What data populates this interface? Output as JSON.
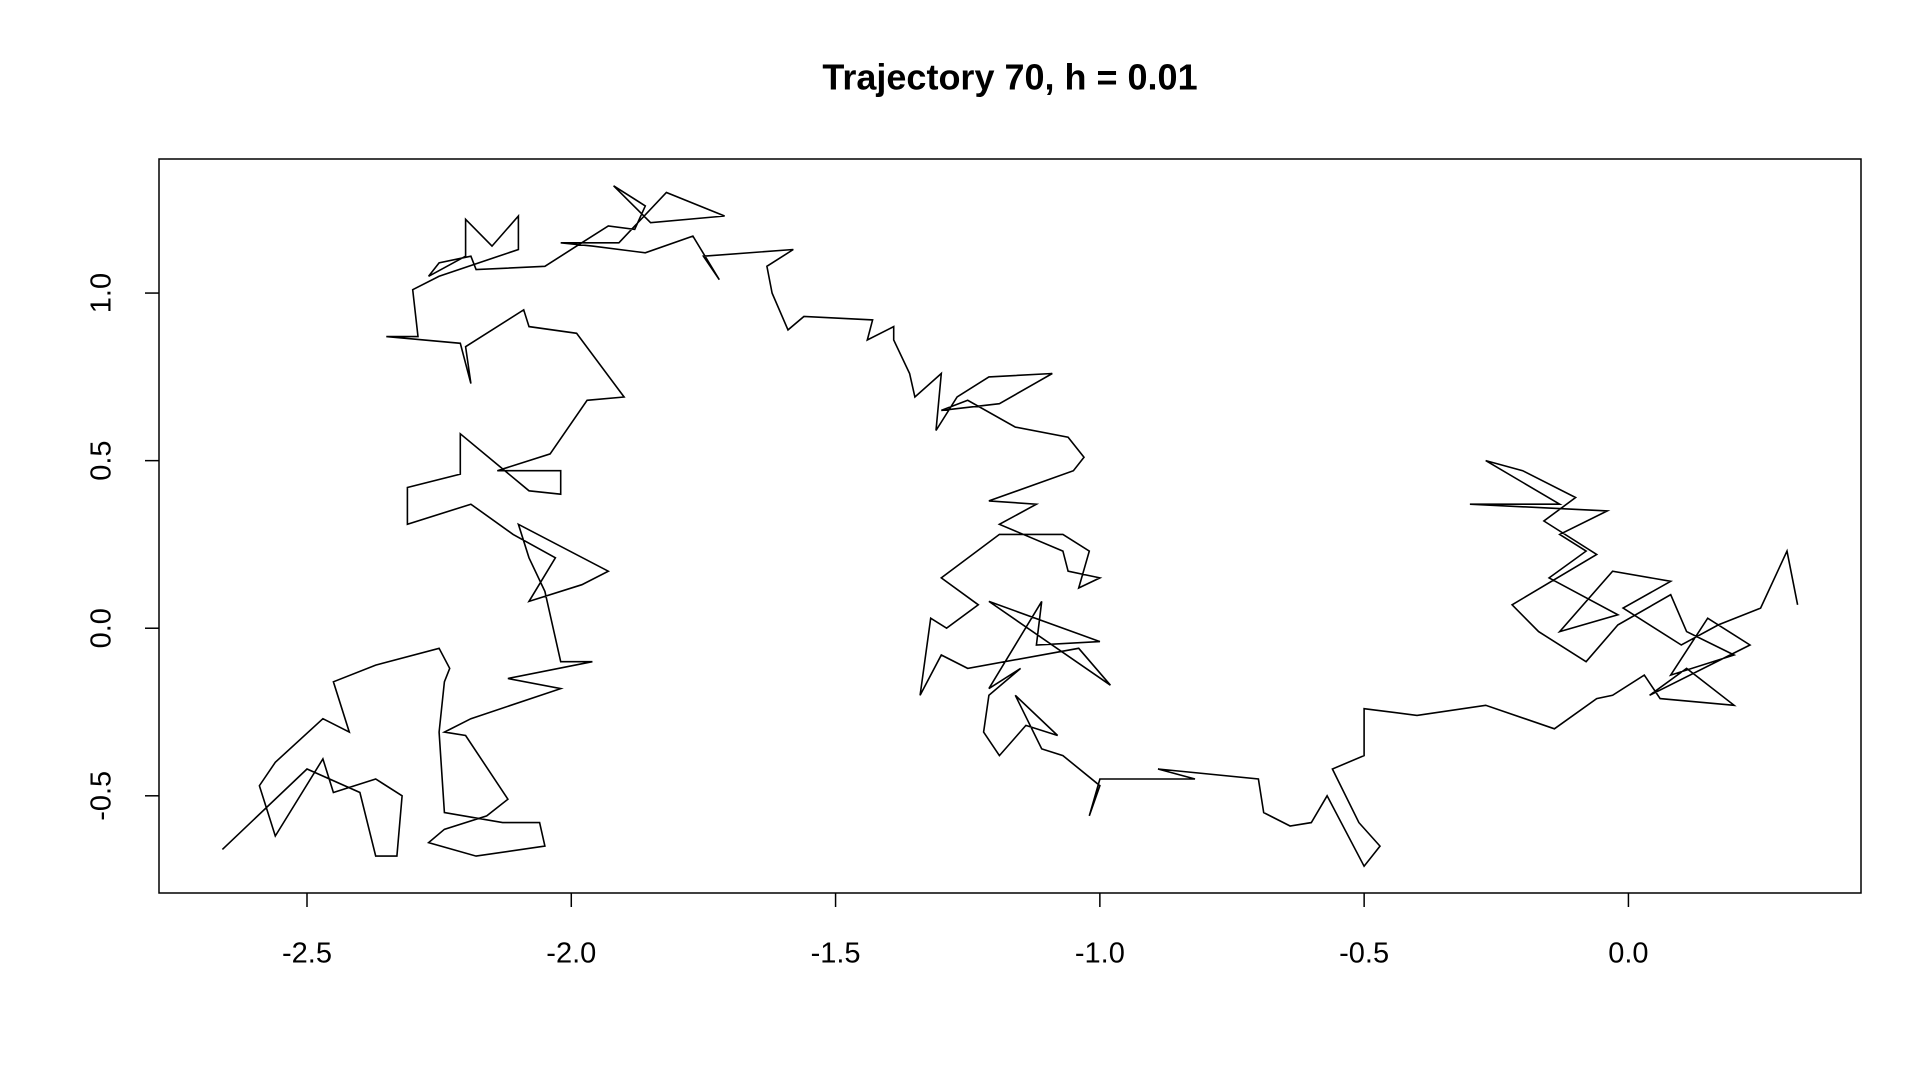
{
  "chart_data": {
    "type": "line",
    "title": "Trajectory 70, h = 0.01",
    "xlim": [
      -2.78,
      0.44
    ],
    "ylim": [
      -0.79,
      1.4
    ],
    "xticks": [
      -2.5,
      {
        "value": -2,
        "label": "-2.0"
      },
      -1.5,
      {
        "value": -1,
        "label": "-1.0"
      },
      -0.5,
      {
        "value": 0,
        "label": "0.0"
      }
    ],
    "yticks": [
      -0.5,
      {
        "value": 0,
        "label": "0.0"
      },
      0.5,
      {
        "value": 1,
        "label": "1.0"
      }
    ],
    "color": "#000000",
    "x": [
      0.32,
      0.3,
      0.25,
      0.17,
      0.1,
      -0.01,
      0.08,
      -0.03,
      -0.13,
      -0.02,
      -0.15,
      -0.08,
      -0.13,
      -0.04,
      -0.3,
      -0.13,
      -0.27,
      -0.2,
      -0.1,
      -0.16,
      -0.06,
      -0.22,
      -0.17,
      -0.08,
      -0.02,
      0.08,
      0.11,
      0.2,
      0.08,
      0.15,
      0.23,
      0.04,
      0.11,
      0.2,
      0.06,
      0.03,
      -0.03,
      -0.06,
      -0.14,
      -0.27,
      -0.4,
      -0.5,
      -0.5,
      -0.56,
      -0.51,
      -0.47,
      -0.5,
      -0.57,
      -0.6,
      -0.64,
      -0.69,
      -0.7,
      -0.89,
      -0.82,
      -1.0,
      -1.02,
      -1.0,
      -1.07,
      -1.11,
      -1.16,
      -1.08,
      -1.14,
      -1.19,
      -1.22,
      -1.21,
      -1.15,
      -1.21,
      -1.11,
      -1.12,
      -1.0,
      -1.21,
      -0.98,
      -1.04,
      -1.25,
      -1.3,
      -1.34,
      -1.32,
      -1.29,
      -1.23,
      -1.3,
      -1.19,
      -1.07,
      -1.02,
      -1.04,
      -1.0,
      -1.06,
      -1.07,
      -1.19,
      -1.12,
      -1.21,
      -1.05,
      -1.03,
      -1.06,
      -1.16,
      -1.25,
      -1.3,
      -1.19,
      -1.09,
      -1.21,
      -1.27,
      -1.31,
      -1.3,
      -1.35,
      -1.36,
      -1.39,
      -1.39,
      -1.44,
      -1.43,
      -1.56,
      -1.59,
      -1.62,
      -1.63,
      -1.58,
      -1.75,
      -1.72,
      -1.77,
      -1.86,
      -1.96,
      -2.02,
      -1.91,
      -1.82,
      -1.71,
      -1.85,
      -1.92,
      -1.86,
      -1.88,
      -1.93,
      -1.99,
      -2.05,
      -2.18,
      -2.19,
      -2.25,
      -2.27,
      -2.2,
      -2.2,
      -2.15,
      -2.1,
      -2.1,
      -2.25,
      -2.3,
      -2.29,
      -2.35,
      -2.21,
      -2.19,
      -2.2,
      -2.09,
      -2.08,
      -1.99,
      -1.9,
      -1.97,
      -2.04,
      -2.14,
      -2.02,
      -2.02,
      -2.08,
      -2.21,
      -2.21,
      -2.31,
      -2.31,
      -2.19,
      -2.11,
      -2.03,
      -2.08,
      -1.98,
      -1.93,
      -2.1,
      -2.08,
      -2.05,
      -2.02,
      -1.96,
      -2.12,
      -2.02,
      -2.19,
      -2.24,
      -2.2,
      -2.12,
      -2.16,
      -2.24,
      -2.27,
      -2.18,
      -2.05,
      -2.06,
      -2.13,
      -2.24,
      -2.25,
      -2.24,
      -2.23,
      -2.25,
      -2.37,
      -2.45,
      -2.42,
      -2.47,
      -2.56,
      -2.59,
      -2.56,
      -2.47,
      -2.45,
      -2.37,
      -2.32,
      -2.33,
      -2.37,
      -2.4,
      -2.5,
      -2.66
    ],
    "values": [
      0.07,
      0.23,
      0.06,
      0.01,
      -0.05,
      0.06,
      0.14,
      0.17,
      -0.01,
      0.04,
      0.15,
      0.23,
      0.28,
      0.35,
      0.37,
      0.37,
      0.5,
      0.47,
      0.39,
      0.32,
      0.22,
      0.07,
      -0.01,
      -0.1,
      0.01,
      0.1,
      -0.01,
      -0.08,
      -0.14,
      0.03,
      -0.05,
      -0.2,
      -0.12,
      -0.23,
      -0.21,
      -0.14,
      -0.2,
      -0.21,
      -0.3,
      -0.23,
      -0.26,
      -0.24,
      -0.38,
      -0.42,
      -0.58,
      -0.65,
      -0.71,
      -0.5,
      -0.58,
      -0.59,
      -0.55,
      -0.45,
      -0.42,
      -0.45,
      -0.45,
      -0.56,
      -0.47,
      -0.38,
      -0.36,
      -0.2,
      -0.32,
      -0.29,
      -0.38,
      -0.31,
      -0.2,
      -0.12,
      -0.18,
      0.08,
      -0.05,
      -0.04,
      0.08,
      -0.17,
      -0.06,
      -0.12,
      -0.08,
      -0.2,
      0.03,
      0.0,
      0.07,
      0.15,
      0.28,
      0.28,
      0.23,
      0.12,
      0.15,
      0.17,
      0.23,
      0.31,
      0.37,
      0.38,
      0.47,
      0.51,
      0.57,
      0.6,
      0.68,
      0.65,
      0.67,
      0.76,
      0.75,
      0.69,
      0.59,
      0.76,
      0.69,
      0.76,
      0.86,
      0.9,
      0.86,
      0.92,
      0.93,
      0.89,
      1.0,
      1.08,
      1.13,
      1.11,
      1.04,
      1.17,
      1.12,
      1.14,
      1.15,
      1.15,
      1.3,
      1.23,
      1.21,
      1.32,
      1.26,
      1.19,
      1.2,
      1.14,
      1.08,
      1.07,
      1.11,
      1.09,
      1.05,
      1.11,
      1.22,
      1.14,
      1.23,
      1.13,
      1.05,
      1.01,
      0.87,
      0.87,
      0.85,
      0.73,
      0.84,
      0.95,
      0.9,
      0.88,
      0.69,
      0.68,
      0.52,
      0.47,
      0.47,
      0.4,
      0.41,
      0.58,
      0.46,
      0.42,
      0.31,
      0.37,
      0.28,
      0.21,
      0.08,
      0.13,
      0.17,
      0.31,
      0.21,
      0.11,
      -0.1,
      -0.1,
      -0.15,
      -0.18,
      -0.27,
      -0.31,
      -0.32,
      -0.51,
      -0.56,
      -0.6,
      -0.64,
      -0.68,
      -0.65,
      -0.58,
      -0.58,
      -0.55,
      -0.31,
      -0.16,
      -0.12,
      -0.06,
      -0.11,
      -0.16,
      -0.31,
      -0.27,
      -0.4,
      -0.47,
      -0.62,
      -0.39,
      -0.49,
      -0.45,
      -0.5,
      -0.68,
      -0.68,
      -0.49,
      -0.42,
      -0.66
    ]
  }
}
